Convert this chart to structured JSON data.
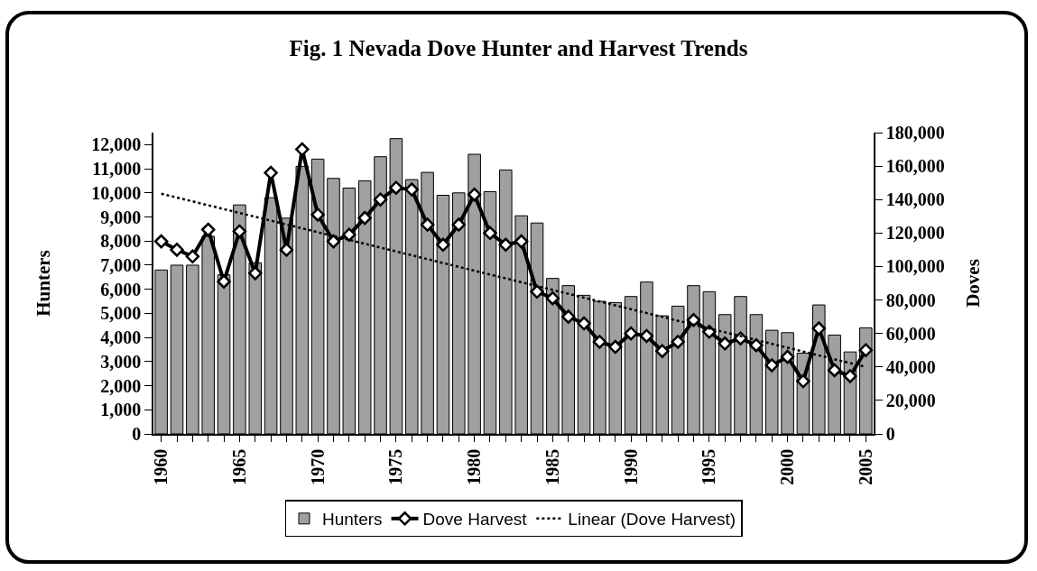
{
  "chart_data": {
    "type": "bar",
    "title": "Fig. 1 Nevada Dove Hunter and Harvest Trends",
    "ylabel": "Hunters",
    "y2label": "Doves",
    "x": [
      1960,
      1961,
      1962,
      1963,
      1964,
      1965,
      1966,
      1967,
      1968,
      1969,
      1970,
      1971,
      1972,
      1973,
      1974,
      1975,
      1976,
      1977,
      1978,
      1979,
      1980,
      1981,
      1982,
      1983,
      1984,
      1985,
      1986,
      1987,
      1988,
      1989,
      1990,
      1991,
      1992,
      1993,
      1994,
      1995,
      1996,
      1997,
      1998,
      1999,
      2000,
      2001,
      2002,
      2003,
      2004,
      2005
    ],
    "series": [
      {
        "name": "Hunters",
        "color": "#a0a0a0",
        "values": [
          6800,
          7000,
          7000,
          8200,
          6600,
          9500,
          7100,
          9800,
          8950,
          11100,
          11400,
          10600,
          10200,
          10500,
          11500,
          12250,
          10550,
          10850,
          9900,
          10000,
          11600,
          10050,
          10950,
          9050,
          8750,
          6450,
          6150,
          5750,
          5500,
          5450,
          5700,
          6300,
          4900,
          5300,
          6150,
          5900,
          4950,
          5700,
          4950,
          4300,
          4200,
          3350,
          5350,
          4100,
          3400,
          4400
        ]
      },
      {
        "name": "Dove Harvest",
        "type": "line",
        "axis": "y2",
        "color": "#000000",
        "marker": "diamond",
        "line_style": "solid",
        "values": [
          115000,
          110000,
          106000,
          122000,
          91000,
          121000,
          96000,
          156000,
          110000,
          170000,
          131000,
          115000,
          119000,
          129000,
          140000,
          147000,
          146000,
          125000,
          113000,
          125000,
          143000,
          120000,
          113000,
          115000,
          85000,
          81000,
          70000,
          66000,
          55000,
          52000,
          60000,
          58500,
          49500,
          55000,
          68000,
          61000,
          54000,
          57000,
          53000,
          41000,
          46000,
          31500,
          63000,
          38000,
          34500,
          50000
        ]
      },
      {
        "name": "Linear (Dove Harvest)",
        "type": "line",
        "axis": "y2",
        "color": "#000000",
        "marker": "none",
        "line_style": "dotted",
        "x": [
          1960,
          2005
        ],
        "values": [
          143500,
          40000
        ]
      }
    ],
    "xlim": [
      1959.5,
      2005.5
    ],
    "xticks": [
      1960,
      {
        "value": 1961,
        "label": null
      },
      {
        "value": 1962,
        "label": null
      },
      {
        "value": 1963,
        "label": null
      },
      {
        "value": 1964,
        "label": null
      },
      1965,
      {
        "value": 1966,
        "label": null
      },
      {
        "value": 1967,
        "label": null
      },
      {
        "value": 1968,
        "label": null
      },
      {
        "value": 1969,
        "label": null
      },
      1970,
      {
        "value": 1971,
        "label": null
      },
      {
        "value": 1972,
        "label": null
      },
      {
        "value": 1973,
        "label": null
      },
      {
        "value": 1974,
        "label": null
      },
      1975,
      {
        "value": 1976,
        "label": null
      },
      {
        "value": 1977,
        "label": null
      },
      {
        "value": 1978,
        "label": null
      },
      {
        "value": 1979,
        "label": null
      },
      1980,
      {
        "value": 1981,
        "label": null
      },
      {
        "value": 1982,
        "label": null
      },
      {
        "value": 1983,
        "label": null
      },
      {
        "value": 1984,
        "label": null
      },
      1985,
      {
        "value": 1986,
        "label": null
      },
      {
        "value": 1987,
        "label": null
      },
      {
        "value": 1988,
        "label": null
      },
      {
        "value": 1989,
        "label": null
      },
      1990,
      {
        "value": 1991,
        "label": null
      },
      {
        "value": 1992,
        "label": null
      },
      {
        "value": 1993,
        "label": null
      },
      {
        "value": 1994,
        "label": null
      },
      1995,
      {
        "value": 1996,
        "label": null
      },
      {
        "value": 1997,
        "label": null
      },
      {
        "value": 1998,
        "label": null
      },
      {
        "value": 1999,
        "label": null
      },
      2000,
      {
        "value": 2001,
        "label": null
      },
      {
        "value": 2002,
        "label": null
      },
      {
        "value": 2003,
        "label": null
      },
      {
        "value": 2004,
        "label": null
      },
      2005
    ],
    "ylim": [
      0,
      12500
    ],
    "yticks": [
      0,
      {
        "value": 1000,
        "label": "1,000"
      },
      {
        "value": 2000,
        "label": "2,000"
      },
      {
        "value": 3000,
        "label": "3,000"
      },
      {
        "value": 4000,
        "label": "4,000"
      },
      {
        "value": 5000,
        "label": "5,000"
      },
      {
        "value": 6000,
        "label": "6,000"
      },
      {
        "value": 7000,
        "label": "7,000"
      },
      {
        "value": 8000,
        "label": "8,000"
      },
      {
        "value": 9000,
        "label": "9,000"
      },
      {
        "value": 10000,
        "label": "10,000"
      },
      {
        "value": 11000,
        "label": "11,000"
      },
      {
        "value": 12000,
        "label": "12,000"
      }
    ],
    "y2lim": [
      0,
      180000
    ],
    "y2ticks": [
      0,
      {
        "value": 20000,
        "label": "20,000"
      },
      {
        "value": 40000,
        "label": "40,000"
      },
      {
        "value": 60000,
        "label": "60,000"
      },
      {
        "value": 80000,
        "label": "80,000"
      },
      {
        "value": 100000,
        "label": "100,000"
      },
      {
        "value": 120000,
        "label": "120,000"
      },
      {
        "value": 140000,
        "label": "140,000"
      },
      {
        "value": 160000,
        "label": "160,000"
      },
      {
        "value": 180000,
        "label": "180,000"
      }
    ],
    "grid": false,
    "legend": "bottom"
  }
}
